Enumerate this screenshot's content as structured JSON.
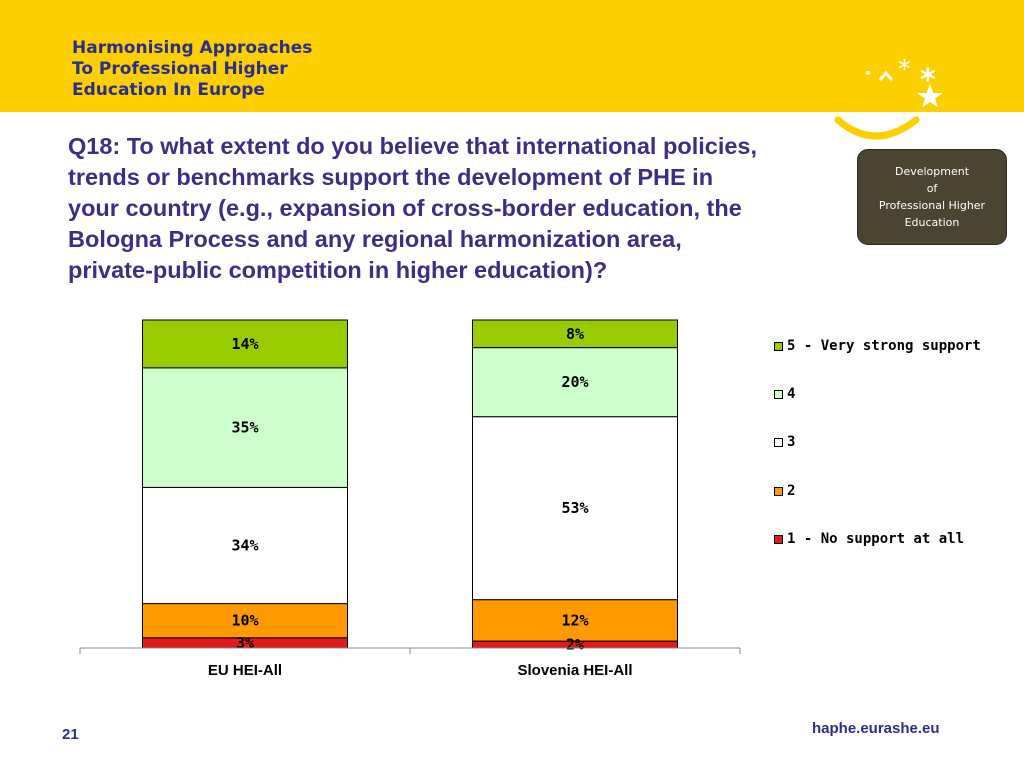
{
  "header": {
    "project_lines": [
      "Harmonising Approaches",
      "To Professional Higher",
      "Education In Europe"
    ],
    "logo": "eurashe-stars-smile-logo",
    "banner_color": "#fccf00"
  },
  "question_lines": [
    "Q18: To what extent do you believe that international policies,",
    "trends or benchmarks support the development of PHE in",
    "your country (e.g., expansion of cross-border education, the",
    "Bologna Process and any regional harmonization area,",
    "private-public competition in higher education)?"
  ],
  "badge_lines": [
    "Development",
    "of",
    "Professional Higher",
    "Education"
  ],
  "chart_data": {
    "type": "bar",
    "stacked": true,
    "normalized": true,
    "categories": [
      "EU HEI-All",
      "Slovenia HEI-All"
    ],
    "series": [
      {
        "name": "1 - No support at all",
        "color": "#e31a1c",
        "values": [
          3,
          2
        ],
        "labels": [
          "3%",
          "2%"
        ]
      },
      {
        "name": "2",
        "color": "#ff9900",
        "values": [
          10,
          12
        ],
        "labels": [
          "10%",
          "12%"
        ]
      },
      {
        "name": "3",
        "color": "#ffffff",
        "values": [
          34,
          53
        ],
        "labels": [
          "34%",
          "53%"
        ]
      },
      {
        "name": "4",
        "color": "#ccffcc",
        "values": [
          35,
          20
        ],
        "labels": [
          "35%",
          "20%"
        ]
      },
      {
        "name": "5 - Very strong support",
        "color": "#99cc00",
        "values": [
          14,
          8
        ],
        "labels": [
          "14%",
          "8%"
        ]
      }
    ],
    "legend_order": [
      "5 - Very strong support",
      "4",
      "3",
      "2",
      "1 - No support at all"
    ],
    "legend_position": "right",
    "ylim": [
      0,
      100
    ],
    "grid": false
  },
  "footer": {
    "page_number": "21",
    "url": "haphe.eurashe.eu"
  }
}
